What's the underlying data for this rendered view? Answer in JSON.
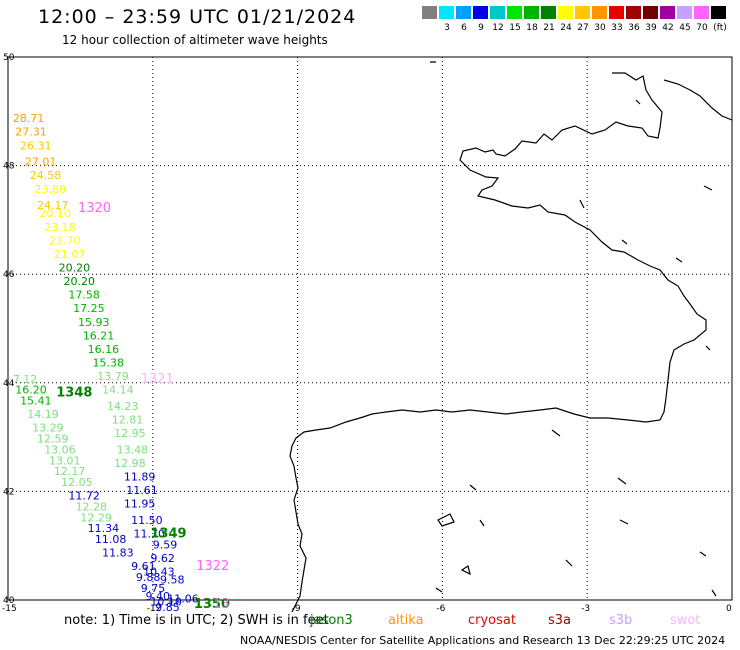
{
  "header": {
    "title": "12:00 – 23:59 UTC 01/21/2024",
    "subtitle": "12 hour collection of altimeter wave heights"
  },
  "colorbar": {
    "unit": "(ft)",
    "bins": [
      {
        "color": "#808080",
        "label": ""
      },
      {
        "color": "#00e6ff",
        "label": "3"
      },
      {
        "color": "#00a0ff",
        "label": "6"
      },
      {
        "color": "#0000e6",
        "label": "9"
      },
      {
        "color": "#00c8c8",
        "label": "12"
      },
      {
        "color": "#00e600",
        "label": "15"
      },
      {
        "color": "#00b400",
        "label": "18"
      },
      {
        "color": "#008200",
        "label": "21"
      },
      {
        "color": "#ffff00",
        "label": "24"
      },
      {
        "color": "#ffc800",
        "label": "27"
      },
      {
        "color": "#ff9600",
        "label": "30"
      },
      {
        "color": "#e60000",
        "label": "33"
      },
      {
        "color": "#a00000",
        "label": "36"
      },
      {
        "color": "#6e0000",
        "label": "39"
      },
      {
        "color": "#a000a0",
        "label": "42"
      },
      {
        "color": "#c8a0ff",
        "label": "45"
      },
      {
        "color": "#ff64ff",
        "label": "70"
      },
      {
        "color": "#000000",
        "label": ""
      }
    ]
  },
  "map": {
    "lat_labels": [
      "50",
      "48",
      "46",
      "44",
      "42",
      "40"
    ],
    "lon_labels": [
      "-15",
      "-12",
      "-9",
      "-6",
      "-3",
      "0"
    ],
    "observations": [
      {
        "v": "28.71",
        "lon": -14.9,
        "lat": 48.8,
        "c": "#ffa000"
      },
      {
        "v": "27.31",
        "lon": -14.85,
        "lat": 48.55,
        "c": "#ffa000"
      },
      {
        "v": "26.31",
        "lon": -14.75,
        "lat": 48.3,
        "c": "#ffc800"
      },
      {
        "v": "27.01",
        "lon": -14.65,
        "lat": 48.0,
        "c": "#ffa000"
      },
      {
        "v": "24.58",
        "lon": -14.55,
        "lat": 47.75,
        "c": "#ffc800"
      },
      {
        "v": "23.80",
        "lon": -14.45,
        "lat": 47.5,
        "c": "#ffff00"
      },
      {
        "v": "24.17",
        "lon": -14.4,
        "lat": 47.2,
        "c": "#ffc800"
      },
      {
        "v": "20.10",
        "lon": -14.35,
        "lat": 47.05,
        "c": "#ffff00"
      },
      {
        "v": "23.18",
        "lon": -14.25,
        "lat": 46.8,
        "c": "#ffff00"
      },
      {
        "v": "23.70",
        "lon": -14.15,
        "lat": 46.55,
        "c": "#ffff00"
      },
      {
        "v": "21.07",
        "lon": -14.05,
        "lat": 46.3,
        "c": "#ffff00"
      },
      {
        "v": "20.20",
        "lon": -13.95,
        "lat": 46.05,
        "c": "#008200"
      },
      {
        "v": "20.20",
        "lon": -13.85,
        "lat": 45.8,
        "c": "#008200"
      },
      {
        "v": "17.58",
        "lon": -13.75,
        "lat": 45.55,
        "c": "#00b400"
      },
      {
        "v": "17.25",
        "lon": -13.65,
        "lat": 45.3,
        "c": "#00b400"
      },
      {
        "v": "15.93",
        "lon": -13.55,
        "lat": 45.05,
        "c": "#00b400"
      },
      {
        "v": "16.21",
        "lon": -13.45,
        "lat": 44.8,
        "c": "#00b400"
      },
      {
        "v": "16.16",
        "lon": -13.35,
        "lat": 44.55,
        "c": "#00b400"
      },
      {
        "v": "15.38",
        "lon": -13.25,
        "lat": 44.3,
        "c": "#00b400"
      },
      {
        "v": "13.79",
        "lon": -13.15,
        "lat": 44.05,
        "c": "#7ee07e"
      },
      {
        "v": "14.14",
        "lon": -13.05,
        "lat": 43.8,
        "c": "#7ee07e"
      },
      {
        "v": "14.23",
        "lon": -12.95,
        "lat": 43.5,
        "c": "#7ee07e"
      },
      {
        "v": "12.81",
        "lon": -12.85,
        "lat": 43.25,
        "c": "#7ee07e"
      },
      {
        "v": "12.95",
        "lon": -12.8,
        "lat": 43.0,
        "c": "#7ee07e"
      },
      {
        "v": "13.48",
        "lon": -12.75,
        "lat": 42.7,
        "c": "#7ee07e"
      },
      {
        "v": "12.98",
        "lon": -12.8,
        "lat": 42.45,
        "c": "#7ee07e"
      },
      {
        "v": "11.89",
        "lon": -12.6,
        "lat": 42.2,
        "c": "#0000c8"
      },
      {
        "v": "11.61",
        "lon": -12.55,
        "lat": 41.95,
        "c": "#0000c8"
      },
      {
        "v": "11.95",
        "lon": -12.6,
        "lat": 41.7,
        "c": "#0000c8"
      },
      {
        "v": "11.50",
        "lon": -12.45,
        "lat": 41.4,
        "c": "#0000c8"
      },
      {
        "v": "11.70",
        "lon": -12.4,
        "lat": 41.15,
        "c": "#0000c8"
      },
      {
        "v": "9.59",
        "lon": -12.0,
        "lat": 40.95,
        "c": "#0000c8"
      },
      {
        "v": "9.62",
        "lon": -12.05,
        "lat": 40.7,
        "c": "#0000c8"
      },
      {
        "v": "10.43",
        "lon": -12.2,
        "lat": 40.45,
        "c": "#0000c8"
      },
      {
        "v": "9.58",
        "lon": -11.85,
        "lat": 40.3,
        "c": "#0000c8"
      },
      {
        "v": "11.06",
        "lon": -11.7,
        "lat": 39.95,
        "c": "#0000c8"
      },
      {
        "v": "9.85",
        "lon": -11.95,
        "lat": 39.8,
        "c": "#0000c8"
      },
      {
        "v": "7.12",
        "lon": -14.9,
        "lat": 44.0,
        "c": "#7ee07e"
      },
      {
        "v": "16.20",
        "lon": -14.85,
        "lat": 43.8,
        "c": "#00b400"
      },
      {
        "v": "15.41",
        "lon": -14.75,
        "lat": 43.6,
        "c": "#00b400"
      },
      {
        "v": "14.19",
        "lon": -14.6,
        "lat": 43.35,
        "c": "#7ee07e"
      },
      {
        "v": "13.29",
        "lon": -14.5,
        "lat": 43.1,
        "c": "#7ee07e"
      },
      {
        "v": "12.59",
        "lon": -14.4,
        "lat": 42.9,
        "c": "#7ee07e"
      },
      {
        "v": "13.06",
        "lon": -14.25,
        "lat": 42.7,
        "c": "#7ee07e"
      },
      {
        "v": "13.01",
        "lon": -14.15,
        "lat": 42.5,
        "c": "#7ee07e"
      },
      {
        "v": "12.17",
        "lon": -14.05,
        "lat": 42.3,
        "c": "#7ee07e"
      },
      {
        "v": "12.05",
        "lon": -13.9,
        "lat": 42.1,
        "c": "#7ee07e"
      },
      {
        "v": "11.72",
        "lon": -13.75,
        "lat": 41.85,
        "c": "#0000c8"
      },
      {
        "v": "12.28",
        "lon": -13.6,
        "lat": 41.65,
        "c": "#7ee07e"
      },
      {
        "v": "12.29",
        "lon": -13.5,
        "lat": 41.45,
        "c": "#7ee07e"
      },
      {
        "v": "11.34",
        "lon": -13.35,
        "lat": 41.25,
        "c": "#0000c8"
      },
      {
        "v": "11.08",
        "lon": -13.2,
        "lat": 41.05,
        "c": "#0000c8"
      },
      {
        "v": "11.83",
        "lon": -13.05,
        "lat": 40.8,
        "c": "#0000c8"
      },
      {
        "v": "9.61",
        "lon": -12.45,
        "lat": 40.55,
        "c": "#0000c8"
      },
      {
        "v": "9.88",
        "lon": -12.35,
        "lat": 40.35,
        "c": "#0000c8"
      },
      {
        "v": "9.75",
        "lon": -12.25,
        "lat": 40.15,
        "c": "#0000c8"
      },
      {
        "v": "9.40",
        "lon": -12.15,
        "lat": 40.0,
        "c": "#0000c8"
      },
      {
        "v": "10.10",
        "lon": -12.05,
        "lat": 39.9,
        "c": "#0000c8"
      }
    ],
    "pass_labels": [
      {
        "t": "1320",
        "lon": -13.55,
        "lat": 47.15,
        "c": "#ff64ff",
        "bold": false
      },
      {
        "t": "1348",
        "lon": -14.0,
        "lat": 43.75,
        "c": "#008200",
        "bold": true
      },
      {
        "t": "1321",
        "lon": -12.25,
        "lat": 44.0,
        "c": "#ffb4ff",
        "bold": false
      },
      {
        "t": "1349",
        "lon": -12.05,
        "lat": 41.15,
        "c": "#008200",
        "bold": true
      },
      {
        "t": "1322",
        "lon": -11.1,
        "lat": 40.55,
        "c": "#ff64ff",
        "bold": false
      },
      {
        "t": "1350",
        "lon": -11.15,
        "lat": 39.85,
        "c": "#008200",
        "bold": true
      },
      {
        "t": "13",
        "lon": -10.75,
        "lat": 39.85,
        "c": "#ff64ff",
        "bold": false
      }
    ]
  },
  "footer": {
    "note_prefix": "note:  1) Time is in UTC; 2) SWH is in feet",
    "satellites": [
      {
        "name": "jason3",
        "color": "#008200"
      },
      {
        "name": "altika",
        "color": "#ff9600"
      },
      {
        "name": "cryosat",
        "color": "#e60000"
      },
      {
        "name": "s3a",
        "color": "#a00000"
      },
      {
        "name": "s3b",
        "color": "#c8a0ff"
      },
      {
        "name": "swot",
        "color": "#ffb4ff"
      }
    ],
    "credit": "NOAA/NESDIS Center for Satellite Applications and Research     13 Dec 22:29:25 UTC 2024"
  }
}
